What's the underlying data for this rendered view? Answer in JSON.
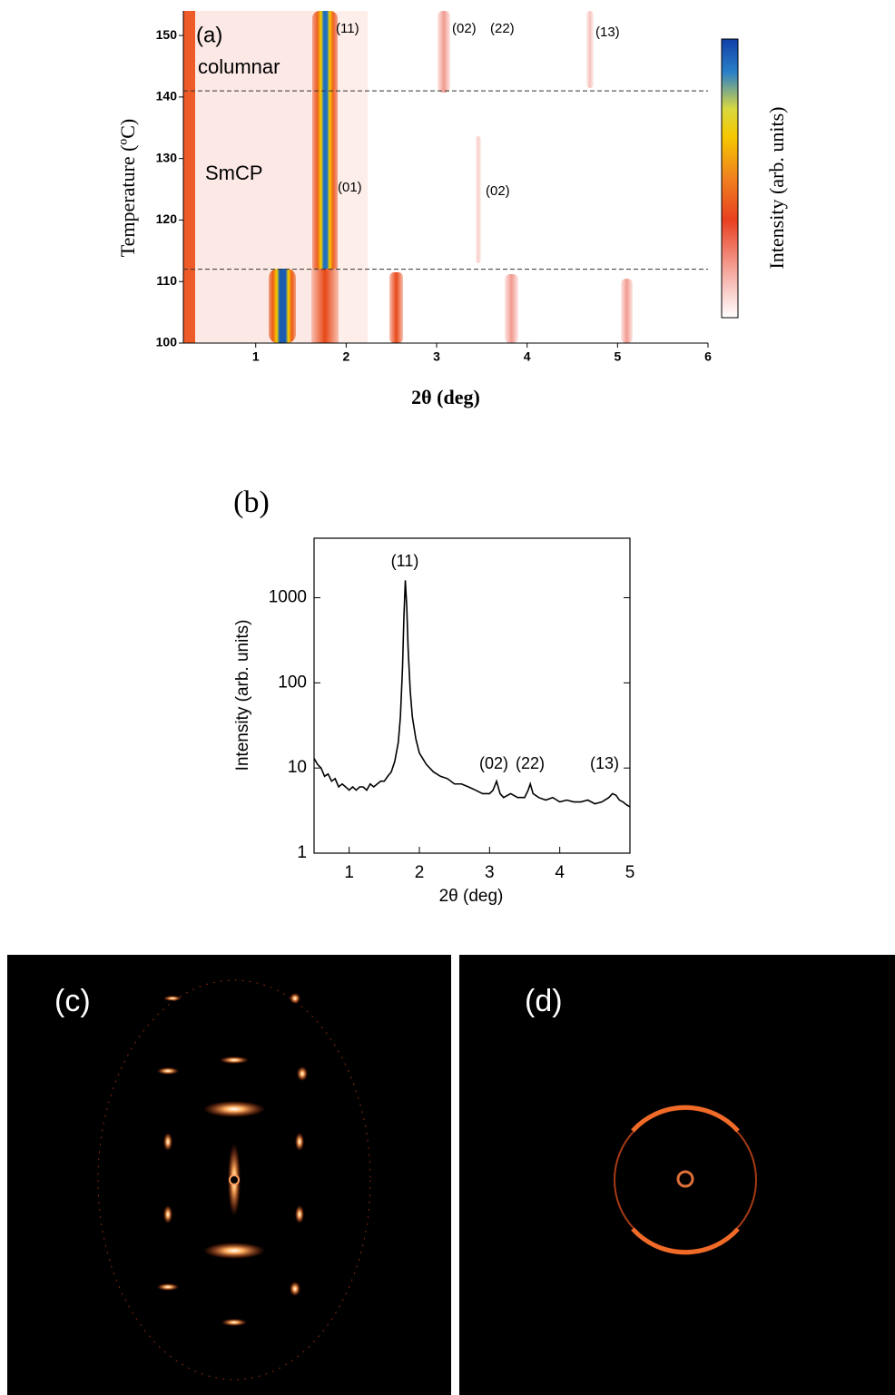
{
  "chart_data": [
    {
      "type": "heatmap",
      "panel_label": "(a)",
      "xlabel": "2θ (deg)",
      "ylabel": "Temperature (ºC)",
      "colorbar_label": "Intensity (arb. units)",
      "xlim": [
        0.2,
        6
      ],
      "ylim": [
        100,
        154
      ],
      "xticks": [
        1,
        2,
        3,
        4,
        5,
        6
      ],
      "yticks": [
        100,
        110,
        120,
        130,
        140,
        150
      ],
      "phase_boundaries": [
        112,
        141
      ],
      "annotations": [
        "columnar",
        "SmCP",
        "(11)",
        "(02)",
        "(22)",
        "(13)",
        "(01)",
        "(02)"
      ]
    },
    {
      "type": "line",
      "panel_label": "(b)",
      "xlabel": "2θ (deg)",
      "ylabel": "Intensity (arb. units)",
      "xlim": [
        0.5,
        5
      ],
      "ylim": [
        1,
        5000
      ],
      "log_y": true,
      "xticks": [
        1,
        2,
        3,
        4,
        5
      ],
      "yticks": [
        1,
        10,
        100,
        1000
      ],
      "color": "#000000",
      "annotations": [
        "(11)",
        "(02)",
        "(22)",
        "(13)"
      ],
      "x": [
        0.5,
        0.55,
        0.6,
        0.65,
        0.7,
        0.75,
        0.8,
        0.85,
        0.9,
        0.95,
        1.0,
        1.05,
        1.1,
        1.15,
        1.2,
        1.25,
        1.3,
        1.35,
        1.4,
        1.45,
        1.5,
        1.55,
        1.6,
        1.65,
        1.7,
        1.73,
        1.76,
        1.78,
        1.8,
        1.82,
        1.84,
        1.87,
        1.9,
        1.95,
        2.0,
        2.1,
        2.2,
        2.3,
        2.4,
        2.5,
        2.6,
        2.7,
        2.8,
        2.9,
        3.0,
        3.05,
        3.1,
        3.15,
        3.2,
        3.3,
        3.4,
        3.5,
        3.55,
        3.58,
        3.62,
        3.7,
        3.8,
        3.9,
        4.0,
        4.1,
        4.2,
        4.3,
        4.4,
        4.5,
        4.6,
        4.7,
        4.75,
        4.8,
        4.85,
        4.9,
        4.95,
        5.0
      ],
      "values": [
        13,
        11,
        10,
        8,
        8.5,
        7,
        7.5,
        6,
        6.5,
        6,
        5.5,
        6,
        5.5,
        6,
        6,
        5.5,
        6.5,
        6,
        6.5,
        7,
        7,
        8,
        9,
        12,
        20,
        40,
        150,
        600,
        1600,
        800,
        250,
        80,
        40,
        22,
        15,
        11,
        9,
        8,
        7.5,
        6.5,
        6.5,
        6,
        5.5,
        5,
        5,
        5.5,
        7,
        5,
        4.5,
        5,
        4.5,
        4.5,
        5.5,
        6.5,
        5,
        4.5,
        4.2,
        4.5,
        4,
        4.2,
        4,
        4,
        4.2,
        3.8,
        4,
        4.5,
        5,
        4.8,
        4.2,
        4,
        3.7,
        3.5
      ]
    }
  ],
  "images": [
    {
      "label": "(c)"
    },
    {
      "label": "(d)"
    }
  ]
}
